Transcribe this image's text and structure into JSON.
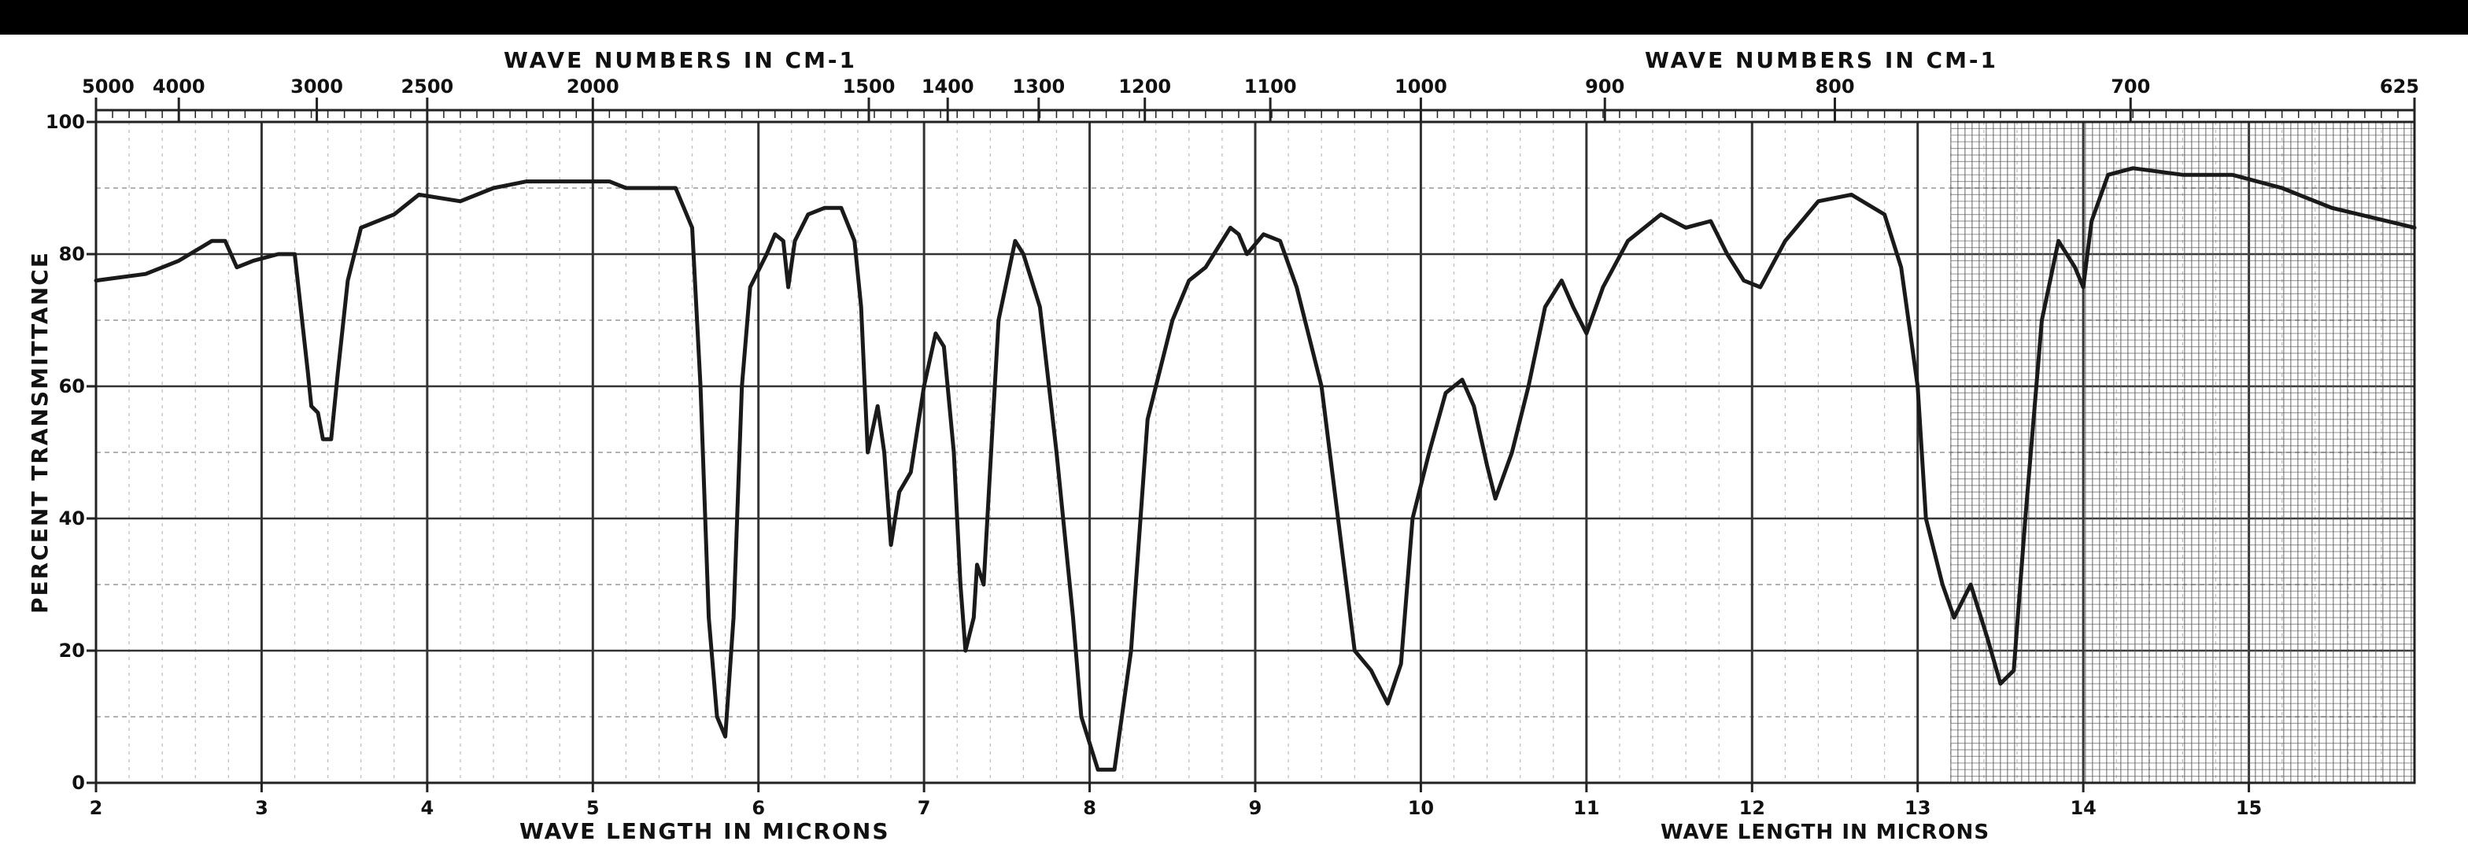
{
  "chart_data": {
    "type": "line",
    "title": "",
    "top_axis_title_left": "WAVE NUMBERS IN CM-1",
    "top_axis_title_right": "WAVE NUMBERS IN CM-1",
    "xlabel": "WAVE LENGTH IN MICRONS",
    "xlabel_right": "WAVE LENGTH IN MICRONS",
    "ylabel": "PERCENT TRANSMITTANCE",
    "xlim": [
      2,
      16
    ],
    "ylim": [
      0,
      100
    ],
    "grid": true,
    "x_ticks": [
      "2",
      "3",
      "4",
      "5",
      "6",
      "7",
      "8",
      "9",
      "10",
      "11",
      "12",
      "13",
      "14",
      "15"
    ],
    "y_ticks": [
      "100",
      "80",
      "60",
      "40",
      "20",
      "0"
    ],
    "top_ticks": [
      {
        "label": "5000",
        "micron": 2.0
      },
      {
        "label": "4000",
        "micron": 2.5
      },
      {
        "label": "3000",
        "micron": 3.3333
      },
      {
        "label": "2500",
        "micron": 4.0
      },
      {
        "label": "2000",
        "micron": 5.0
      },
      {
        "label": "1500",
        "micron": 6.6667
      },
      {
        "label": "1400",
        "micron": 7.1429
      },
      {
        "label": "1300",
        "micron": 7.6923
      },
      {
        "label": "1200",
        "micron": 8.3333
      },
      {
        "label": "1100",
        "micron": 9.0909
      },
      {
        "label": "1000",
        "micron": 10.0
      },
      {
        "label": "900",
        "micron": 11.1111
      },
      {
        "label": "800",
        "micron": 12.5
      },
      {
        "label": "700",
        "micron": 14.2857
      },
      {
        "label": "625",
        "micron": 16.0
      }
    ],
    "series": [
      {
        "color": "#1a1a1a",
        "points": [
          [
            2.0,
            76
          ],
          [
            2.3,
            77
          ],
          [
            2.5,
            79
          ],
          [
            2.7,
            82
          ],
          [
            2.78,
            82
          ],
          [
            2.85,
            78
          ],
          [
            2.95,
            79
          ],
          [
            3.1,
            80
          ],
          [
            3.2,
            80
          ],
          [
            3.28,
            62
          ],
          [
            3.3,
            57
          ],
          [
            3.34,
            56
          ],
          [
            3.37,
            52
          ],
          [
            3.42,
            52
          ],
          [
            3.46,
            62
          ],
          [
            3.52,
            76
          ],
          [
            3.6,
            84
          ],
          [
            3.8,
            86
          ],
          [
            3.95,
            89
          ],
          [
            4.2,
            88
          ],
          [
            4.4,
            90
          ],
          [
            4.6,
            91
          ],
          [
            4.8,
            91
          ],
          [
            5.1,
            91
          ],
          [
            5.2,
            90
          ],
          [
            5.5,
            90
          ],
          [
            5.6,
            84
          ],
          [
            5.65,
            60
          ],
          [
            5.7,
            25
          ],
          [
            5.75,
            10
          ],
          [
            5.8,
            7
          ],
          [
            5.85,
            25
          ],
          [
            5.9,
            60
          ],
          [
            5.95,
            75
          ],
          [
            6.05,
            80
          ],
          [
            6.1,
            83
          ],
          [
            6.15,
            82
          ],
          [
            6.18,
            75
          ],
          [
            6.22,
            82
          ],
          [
            6.3,
            86
          ],
          [
            6.4,
            87
          ],
          [
            6.5,
            87
          ],
          [
            6.58,
            82
          ],
          [
            6.62,
            72
          ],
          [
            6.66,
            50
          ],
          [
            6.72,
            57
          ],
          [
            6.76,
            50
          ],
          [
            6.8,
            36
          ],
          [
            6.85,
            44
          ],
          [
            6.92,
            47
          ],
          [
            7.0,
            60
          ],
          [
            7.07,
            68
          ],
          [
            7.12,
            66
          ],
          [
            7.18,
            50
          ],
          [
            7.22,
            30
          ],
          [
            7.25,
            20
          ],
          [
            7.3,
            25
          ],
          [
            7.32,
            33
          ],
          [
            7.36,
            30
          ],
          [
            7.45,
            70
          ],
          [
            7.55,
            82
          ],
          [
            7.6,
            80
          ],
          [
            7.7,
            72
          ],
          [
            7.8,
            50
          ],
          [
            7.9,
            25
          ],
          [
            7.95,
            10
          ],
          [
            8.05,
            2
          ],
          [
            8.15,
            2
          ],
          [
            8.25,
            20
          ],
          [
            8.35,
            55
          ],
          [
            8.5,
            70
          ],
          [
            8.6,
            76
          ],
          [
            8.7,
            78
          ],
          [
            8.85,
            84
          ],
          [
            8.9,
            83
          ],
          [
            8.95,
            80
          ],
          [
            9.05,
            83
          ],
          [
            9.15,
            82
          ],
          [
            9.25,
            75
          ],
          [
            9.4,
            60
          ],
          [
            9.5,
            40
          ],
          [
            9.6,
            20
          ],
          [
            9.7,
            17
          ],
          [
            9.8,
            12
          ],
          [
            9.88,
            18
          ],
          [
            9.95,
            40
          ],
          [
            10.05,
            50
          ],
          [
            10.15,
            59
          ],
          [
            10.25,
            61
          ],
          [
            10.32,
            57
          ],
          [
            10.4,
            48
          ],
          [
            10.45,
            43
          ],
          [
            10.55,
            50
          ],
          [
            10.65,
            60
          ],
          [
            10.75,
            72
          ],
          [
            10.85,
            76
          ],
          [
            10.92,
            72
          ],
          [
            11.0,
            68
          ],
          [
            11.1,
            75
          ],
          [
            11.25,
            82
          ],
          [
            11.45,
            86
          ],
          [
            11.6,
            84
          ],
          [
            11.75,
            85
          ],
          [
            11.85,
            80
          ],
          [
            11.95,
            76
          ],
          [
            12.05,
            75
          ],
          [
            12.2,
            82
          ],
          [
            12.4,
            88
          ],
          [
            12.6,
            89
          ],
          [
            12.8,
            86
          ],
          [
            12.9,
            78
          ],
          [
            13.0,
            60
          ],
          [
            13.05,
            40
          ],
          [
            13.15,
            30
          ],
          [
            13.22,
            25
          ],
          [
            13.32,
            30
          ],
          [
            13.42,
            22
          ],
          [
            13.5,
            15
          ],
          [
            13.58,
            17
          ],
          [
            13.65,
            40
          ],
          [
            13.75,
            70
          ],
          [
            13.85,
            82
          ],
          [
            13.95,
            78
          ],
          [
            14.0,
            75
          ],
          [
            14.05,
            85
          ],
          [
            14.15,
            92
          ],
          [
            14.3,
            93
          ],
          [
            14.6,
            92
          ],
          [
            14.9,
            92
          ],
          [
            15.2,
            90
          ],
          [
            15.5,
            87
          ],
          [
            16.0,
            84
          ]
        ]
      }
    ]
  }
}
